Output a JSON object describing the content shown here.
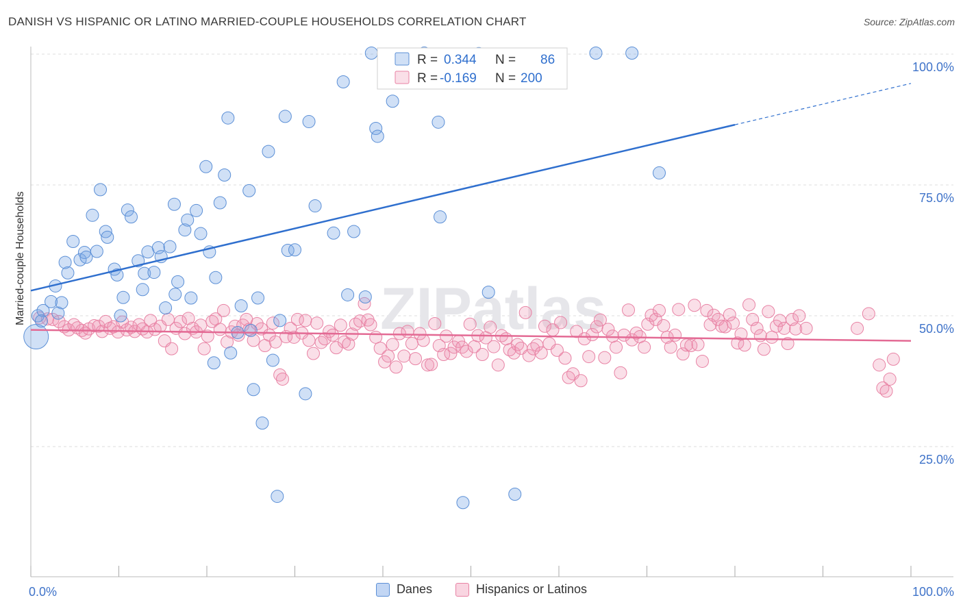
{
  "title": "DANISH VS HISPANIC OR LATINO MARRIED-COUPLE HOUSEHOLDS CORRELATION CHART",
  "source": "Source: ZipAtlas.com",
  "watermark": "ZIPatlas",
  "colors": {
    "blue": "#5b8fd6",
    "blue_fill": "rgba(120,165,230,0.35)",
    "blue_line": "#2f6fce",
    "pink": "#e882a4",
    "pink_fill": "rgba(240,150,180,0.30)",
    "pink_line": "#e36a94",
    "tick_label": "#3f73c9",
    "grid": "#dcdcdc"
  },
  "legend": {
    "rows": [
      {
        "r_label": "R =",
        "r_value": "0.344",
        "n_label": "N =",
        "n_value": "86"
      },
      {
        "r_label": "R =",
        "r_value": "-0.169",
        "n_label": "N =",
        "n_value": "200"
      }
    ]
  },
  "bottom_legend": {
    "danes": "Danes",
    "hispanics": "Hispanics or Latinos"
  },
  "chart_data": {
    "type": "scatter",
    "title": "DANISH VS HISPANIC OR LATINO MARRIED-COUPLE HOUSEHOLDS CORRELATION CHART",
    "xlabel": "",
    "ylabel": "Married-couple Households",
    "xlim": [
      0,
      100
    ],
    "ylim": [
      0,
      105
    ],
    "x_tick_labels": [
      "0.0%",
      "100.0%"
    ],
    "y_ticks": [
      25,
      50,
      75,
      100
    ],
    "y_tick_labels": [
      "25.0%",
      "50.0%",
      "75.0%",
      "100.0%"
    ],
    "grid": true,
    "series": [
      {
        "name": "Danes",
        "r": 0.344,
        "n": 86,
        "trend": {
          "x0": 0,
          "y0": 54.8,
          "x1": 80,
          "y1": 86.5,
          "dash_to_x": 100,
          "dash_to_y": 94.4
        },
        "points": [
          [
            0.6,
            46.0
          ],
          [
            0.8,
            50.0
          ],
          [
            1.4,
            51.0
          ],
          [
            1.2,
            49.0
          ],
          [
            2.3,
            52.7
          ],
          [
            3.5,
            52.5
          ],
          [
            2.8,
            55.7
          ],
          [
            4.2,
            58.2
          ],
          [
            3.9,
            60.2
          ],
          [
            4.8,
            64.2
          ],
          [
            5.6,
            60.7
          ],
          [
            6.1,
            62.1
          ],
          [
            6.3,
            61.2
          ],
          [
            7.0,
            69.2
          ],
          [
            7.5,
            62.3
          ],
          [
            7.9,
            74.1
          ],
          [
            8.5,
            66.1
          ],
          [
            8.7,
            65.0
          ],
          [
            9.5,
            58.9
          ],
          [
            9.8,
            57.8
          ],
          [
            10.5,
            53.5
          ],
          [
            11.0,
            70.2
          ],
          [
            11.4,
            68.9
          ],
          [
            12.2,
            60.5
          ],
          [
            12.7,
            55.0
          ],
          [
            12.9,
            58.1
          ],
          [
            13.3,
            62.2
          ],
          [
            14.0,
            58.3
          ],
          [
            14.5,
            63.0
          ],
          [
            14.8,
            61.3
          ],
          [
            15.3,
            51.5
          ],
          [
            15.8,
            63.2
          ],
          [
            16.3,
            71.3
          ],
          [
            16.7,
            56.5
          ],
          [
            17.5,
            66.4
          ],
          [
            17.8,
            68.3
          ],
          [
            18.2,
            53.4
          ],
          [
            18.8,
            70.1
          ],
          [
            19.3,
            65.7
          ],
          [
            19.9,
            78.5
          ],
          [
            20.3,
            62.2
          ],
          [
            21.0,
            57.3
          ],
          [
            21.5,
            71.6
          ],
          [
            22.0,
            76.9
          ],
          [
            22.4,
            87.8
          ],
          [
            22.7,
            42.9
          ],
          [
            23.5,
            46.8
          ],
          [
            23.9,
            51.9
          ],
          [
            24.8,
            73.9
          ],
          [
            25.0,
            47.2
          ],
          [
            25.3,
            35.9
          ],
          [
            25.8,
            53.4
          ],
          [
            26.3,
            29.5
          ],
          [
            27.5,
            41.5
          ],
          [
            27.0,
            81.4
          ],
          [
            28.3,
            49.1
          ],
          [
            28.9,
            88.1
          ],
          [
            29.2,
            62.5
          ],
          [
            30.0,
            62.6
          ],
          [
            31.6,
            87.1
          ],
          [
            32.3,
            71.0
          ],
          [
            34.4,
            65.8
          ],
          [
            35.5,
            94.7
          ],
          [
            36.0,
            54.0
          ],
          [
            36.7,
            66.1
          ],
          [
            38.0,
            53.6
          ],
          [
            38.7,
            100.2
          ],
          [
            39.2,
            85.8
          ],
          [
            39.4,
            84.3
          ],
          [
            41.1,
            91.0
          ],
          [
            44.7,
            100.2
          ],
          [
            46.3,
            87.0
          ],
          [
            46.5,
            68.9
          ],
          [
            49.1,
            14.3
          ],
          [
            50.9,
            100.1
          ],
          [
            52.0,
            54.5
          ],
          [
            55.0,
            15.9
          ],
          [
            64.2,
            100.2
          ],
          [
            68.3,
            100.2
          ],
          [
            71.4,
            77.3
          ],
          [
            28.0,
            15.5
          ],
          [
            31.2,
            35.1
          ],
          [
            20.8,
            41.0
          ],
          [
            10.2,
            50.0
          ],
          [
            3.1,
            50.5
          ],
          [
            16.4,
            54.1
          ]
        ]
      },
      {
        "name": "Hispanics or Latinos",
        "r": -0.169,
        "n": 200,
        "trend": {
          "x0": 0,
          "y0": 47.3,
          "x1": 100,
          "y1": 45.2
        },
        "points": [
          [
            1.0,
            49.6
          ],
          [
            1.9,
            49.4
          ],
          [
            2.5,
            49.3
          ],
          [
            3.2,
            48.9
          ],
          [
            3.8,
            47.9
          ],
          [
            4.3,
            47.3
          ],
          [
            4.9,
            48.3
          ],
          [
            5.3,
            47.7
          ],
          [
            5.8,
            47.2
          ],
          [
            6.2,
            46.7
          ],
          [
            6.6,
            47.5
          ],
          [
            7.2,
            48.1
          ],
          [
            7.7,
            48.0
          ],
          [
            8.1,
            47.0
          ],
          [
            8.5,
            48.9
          ],
          [
            9.0,
            47.6
          ],
          [
            9.4,
            47.9
          ],
          [
            9.9,
            46.9
          ],
          [
            10.4,
            48.8
          ],
          [
            10.9,
            47.3
          ],
          [
            11.4,
            47.8
          ],
          [
            11.8,
            47.0
          ],
          [
            12.3,
            48.3
          ],
          [
            12.7,
            47.5
          ],
          [
            13.2,
            46.9
          ],
          [
            13.6,
            49.1
          ],
          [
            14.1,
            47.4
          ],
          [
            14.7,
            48.0
          ],
          [
            15.2,
            45.2
          ],
          [
            15.6,
            49.3
          ],
          [
            16.0,
            43.7
          ],
          [
            16.5,
            47.6
          ],
          [
            17.0,
            48.9
          ],
          [
            17.5,
            46.6
          ],
          [
            17.9,
            49.5
          ],
          [
            18.4,
            47.6
          ],
          [
            18.8,
            46.9
          ],
          [
            19.3,
            48.2
          ],
          [
            19.7,
            43.7
          ],
          [
            20.1,
            46.1
          ],
          [
            20.6,
            48.9
          ],
          [
            21.0,
            49.4
          ],
          [
            21.5,
            47.4
          ],
          [
            21.9,
            51.0
          ],
          [
            22.3,
            45.0
          ],
          [
            22.8,
            46.9
          ],
          [
            23.2,
            48.0
          ],
          [
            23.6,
            46.3
          ],
          [
            24.1,
            48.2
          ],
          [
            24.5,
            49.3
          ],
          [
            24.8,
            47.4
          ],
          [
            25.3,
            45.3
          ],
          [
            25.7,
            48.5
          ],
          [
            26.2,
            47.5
          ],
          [
            26.6,
            44.3
          ],
          [
            27.1,
            46.3
          ],
          [
            27.5,
            48.6
          ],
          [
            27.8,
            45.0
          ],
          [
            28.3,
            38.7
          ],
          [
            28.6,
            37.9
          ],
          [
            29.0,
            46.0
          ],
          [
            29.5,
            47.6
          ],
          [
            29.9,
            45.9
          ],
          [
            30.3,
            49.3
          ],
          [
            30.8,
            46.7
          ],
          [
            31.2,
            49.1
          ],
          [
            31.6,
            45.3
          ],
          [
            32.1,
            42.8
          ],
          [
            32.5,
            48.6
          ],
          [
            33.0,
            44.9
          ],
          [
            33.4,
            45.6
          ],
          [
            33.9,
            47.0
          ],
          [
            34.3,
            46.3
          ],
          [
            34.7,
            43.9
          ],
          [
            35.2,
            48.2
          ],
          [
            35.6,
            45.0
          ],
          [
            36.1,
            44.6
          ],
          [
            36.5,
            46.5
          ],
          [
            36.9,
            48.4
          ],
          [
            37.4,
            49.0
          ],
          [
            37.9,
            52.3
          ],
          [
            38.3,
            49.2
          ],
          [
            38.6,
            48.3
          ],
          [
            39.2,
            45.9
          ],
          [
            39.7,
            43.8
          ],
          [
            40.2,
            41.2
          ],
          [
            40.6,
            42.3
          ],
          [
            41.1,
            44.5
          ],
          [
            41.5,
            40.2
          ],
          [
            41.9,
            46.6
          ],
          [
            42.4,
            42.3
          ],
          [
            42.8,
            47.0
          ],
          [
            43.3,
            44.7
          ],
          [
            43.7,
            41.8
          ],
          [
            44.2,
            46.6
          ],
          [
            44.6,
            45.3
          ],
          [
            45.1,
            40.6
          ],
          [
            45.5,
            40.7
          ],
          [
            45.9,
            48.5
          ],
          [
            46.4,
            44.3
          ],
          [
            46.9,
            42.6
          ],
          [
            47.2,
            46.1
          ],
          [
            47.7,
            42.8
          ],
          [
            48.1,
            44.0
          ],
          [
            48.6,
            45.1
          ],
          [
            49.0,
            44.0
          ],
          [
            49.5,
            43.2
          ],
          [
            49.9,
            48.4
          ],
          [
            50.4,
            44.1
          ],
          [
            50.8,
            46.2
          ],
          [
            51.3,
            42.6
          ],
          [
            51.7,
            45.8
          ],
          [
            52.2,
            47.8
          ],
          [
            52.6,
            44.1
          ],
          [
            53.1,
            40.6
          ],
          [
            53.5,
            46.2
          ],
          [
            54.0,
            45.6
          ],
          [
            54.4,
            43.5
          ],
          [
            54.9,
            42.9
          ],
          [
            55.3,
            44.5
          ],
          [
            55.7,
            43.8
          ],
          [
            56.2,
            50.6
          ],
          [
            56.6,
            42.4
          ],
          [
            57.1,
            43.7
          ],
          [
            57.5,
            44.4
          ],
          [
            58.0,
            42.9
          ],
          [
            58.4,
            48.0
          ],
          [
            58.9,
            44.7
          ],
          [
            59.3,
            47.3
          ],
          [
            59.8,
            43.4
          ],
          [
            60.2,
            48.7
          ],
          [
            60.7,
            41.9
          ],
          [
            61.1,
            38.2
          ],
          [
            61.6,
            38.9
          ],
          [
            62.0,
            47.0
          ],
          [
            62.5,
            37.6
          ],
          [
            62.9,
            45.6
          ],
          [
            63.4,
            42.2
          ],
          [
            63.8,
            46.4
          ],
          [
            64.3,
            47.9
          ],
          [
            64.7,
            49.2
          ],
          [
            65.2,
            42.0
          ],
          [
            65.6,
            47.4
          ],
          [
            66.1,
            46.1
          ],
          [
            66.5,
            44.0
          ],
          [
            67.0,
            39.1
          ],
          [
            67.4,
            46.3
          ],
          [
            67.9,
            51.1
          ],
          [
            68.3,
            45.4
          ],
          [
            68.8,
            46.7
          ],
          [
            69.2,
            46.0
          ],
          [
            69.7,
            44.0
          ],
          [
            70.1,
            48.4
          ],
          [
            70.5,
            50.1
          ],
          [
            71.0,
            49.3
          ],
          [
            71.4,
            51.0
          ],
          [
            71.9,
            48.1
          ],
          [
            72.3,
            45.9
          ],
          [
            72.7,
            44.0
          ],
          [
            73.2,
            46.3
          ],
          [
            73.6,
            51.2
          ],
          [
            74.1,
            42.7
          ],
          [
            74.5,
            44.4
          ],
          [
            75.0,
            44.3
          ],
          [
            75.4,
            52.0
          ],
          [
            75.8,
            44.5
          ],
          [
            76.3,
            41.3
          ],
          [
            76.8,
            51.0
          ],
          [
            77.2,
            48.3
          ],
          [
            77.6,
            50.1
          ],
          [
            78.1,
            49.3
          ],
          [
            78.5,
            48.0
          ],
          [
            78.9,
            47.9
          ],
          [
            79.4,
            50.2
          ],
          [
            79.8,
            48.6
          ],
          [
            80.3,
            44.8
          ],
          [
            80.7,
            46.5
          ],
          [
            81.1,
            44.4
          ],
          [
            81.6,
            52.1
          ],
          [
            82.0,
            49.3
          ],
          [
            82.5,
            47.6
          ],
          [
            82.9,
            46.2
          ],
          [
            83.3,
            43.6
          ],
          [
            83.8,
            50.8
          ],
          [
            84.2,
            45.9
          ],
          [
            84.7,
            48.0
          ],
          [
            85.1,
            49.1
          ],
          [
            85.6,
            47.6
          ],
          [
            86.0,
            44.7
          ],
          [
            86.5,
            49.3
          ],
          [
            86.9,
            47.5
          ],
          [
            87.3,
            50.0
          ],
          [
            88.1,
            47.6
          ],
          [
            96.8,
            36.2
          ],
          [
            97.2,
            35.6
          ],
          [
            97.6,
            37.9
          ],
          [
            98.0,
            41.7
          ],
          [
            96.4,
            40.6
          ],
          [
            95.2,
            50.4
          ],
          [
            93.9,
            47.6
          ]
        ]
      }
    ]
  }
}
